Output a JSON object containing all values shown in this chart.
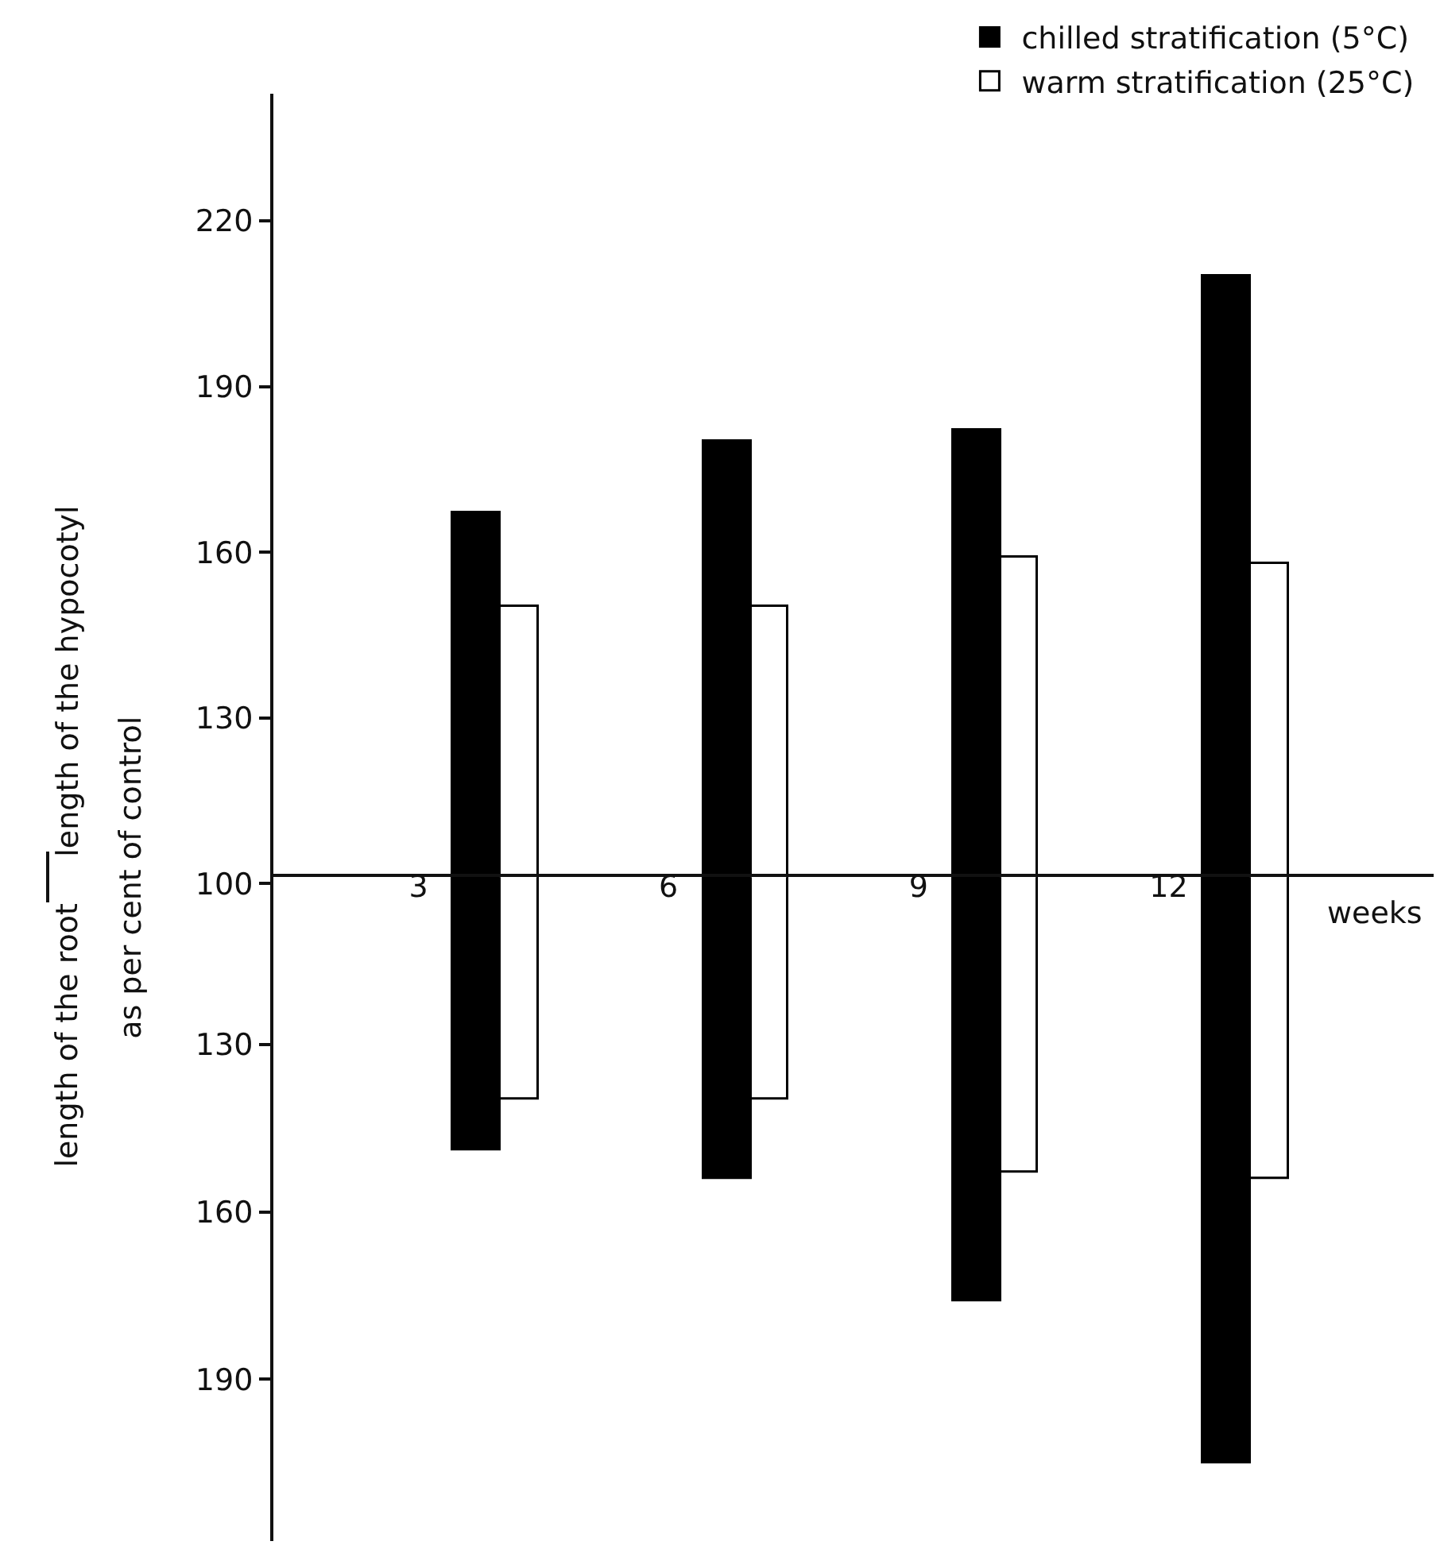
{
  "chart_data": [
    {
      "type": "bar",
      "ylabel": "length of the hypocotyl",
      "categories": [
        "3",
        "6",
        "9",
        "12"
      ],
      "series": [
        {
          "name": "chilled stratification (5°C)",
          "color": "#000000",
          "values": [
            167,
            180,
            182,
            210
          ]
        },
        {
          "name": "warm stratification (25°C)",
          "color": "#ffffff",
          "values": [
            150,
            150,
            159,
            158
          ]
        }
      ],
      "ylim": [
        100,
        243
      ],
      "yticks": [
        100,
        130,
        160,
        190,
        220
      ],
      "tick_labels": "y",
      "legend": "top right"
    },
    {
      "type": "bar",
      "ylabel": "length of the root",
      "xlabel": "weeks",
      "annotations": [
        "as per cent of control"
      ],
      "categories": [
        "3",
        "6",
        "9",
        "12"
      ],
      "series": [
        {
          "color": "#000000",
          "values": [
            149,
            154,
            176,
            205
          ]
        },
        {
          "color": "#ffffff",
          "values": [
            140,
            140,
            153,
            154
          ]
        }
      ],
      "ylim": [
        219,
        100
      ],
      "yticks": [
        130,
        160,
        190
      ]
    }
  ]
}
